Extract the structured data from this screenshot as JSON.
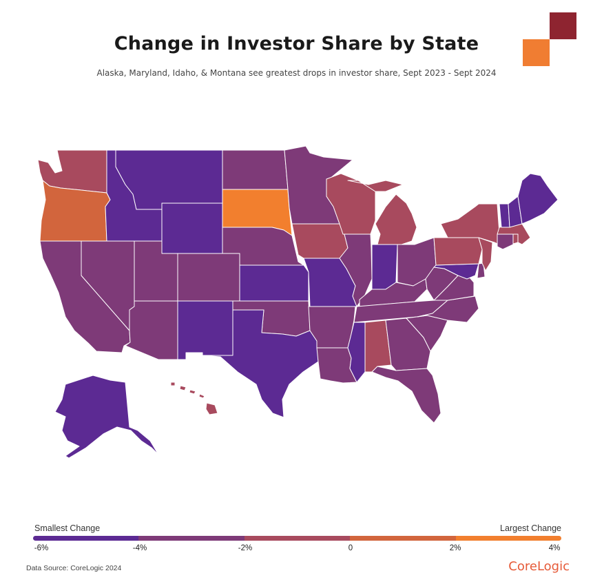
{
  "header": {
    "title": "Change in Investor Share by State",
    "subtitle": "Alaska, Maryland, Idaho, & Montana see greatest drops in investor share, Sept 2023 - Sept 2024"
  },
  "legend": {
    "left_label": "Smallest Change",
    "right_label": "Largest Change",
    "ticks": [
      "-6%",
      "-4%",
      "-2%",
      "0",
      "2%",
      "4%"
    ],
    "bins": [
      {
        "range": "-6% to -4%",
        "color": "#5c2a93"
      },
      {
        "range": "-4% to -2%",
        "color": "#7e3a78"
      },
      {
        "range": "-2% to 0",
        "color": "#a84a5e"
      },
      {
        "range": "0 to 2%",
        "color": "#d2653d"
      },
      {
        "range": "2% to 4%",
        "color": "#f27f2e"
      }
    ]
  },
  "footer": {
    "source": "Data Source: CoreLogic 2024",
    "brand": "CoreLogic"
  },
  "colors": {
    "bin1": "#5c2a93",
    "bin2": "#7e3a78",
    "bin3": "#a84a5e",
    "bin4": "#d2653d",
    "bin5": "#f27f2e",
    "deco_dark": "#8e2430",
    "deco_orange": "#f07d32"
  },
  "states": [
    {
      "name": "Washington",
      "bin": 3
    },
    {
      "name": "Oregon",
      "bin": 4
    },
    {
      "name": "California",
      "bin": 2
    },
    {
      "name": "Nevada",
      "bin": 2
    },
    {
      "name": "Idaho",
      "bin": 1
    },
    {
      "name": "Montana",
      "bin": 1
    },
    {
      "name": "Wyoming",
      "bin": 1
    },
    {
      "name": "Utah",
      "bin": 2
    },
    {
      "name": "Colorado",
      "bin": 2
    },
    {
      "name": "Arizona",
      "bin": 2
    },
    {
      "name": "New Mexico",
      "bin": 1
    },
    {
      "name": "North Dakota",
      "bin": 2
    },
    {
      "name": "South Dakota",
      "bin": 5
    },
    {
      "name": "Nebraska",
      "bin": 2
    },
    {
      "name": "Kansas",
      "bin": 1
    },
    {
      "name": "Oklahoma",
      "bin": 2
    },
    {
      "name": "Texas",
      "bin": 1
    },
    {
      "name": "Minnesota",
      "bin": 2
    },
    {
      "name": "Iowa",
      "bin": 3
    },
    {
      "name": "Missouri",
      "bin": 1
    },
    {
      "name": "Arkansas",
      "bin": 2
    },
    {
      "name": "Louisiana",
      "bin": 2
    },
    {
      "name": "Wisconsin",
      "bin": 3
    },
    {
      "name": "Illinois",
      "bin": 2
    },
    {
      "name": "Michigan",
      "bin": 3
    },
    {
      "name": "Indiana",
      "bin": 1
    },
    {
      "name": "Ohio",
      "bin": 2
    },
    {
      "name": "Kentucky",
      "bin": 2
    },
    {
      "name": "Tennessee",
      "bin": 2
    },
    {
      "name": "Mississippi",
      "bin": 1
    },
    {
      "name": "Alabama",
      "bin": 3
    },
    {
      "name": "Georgia",
      "bin": 2
    },
    {
      "name": "Florida",
      "bin": 2
    },
    {
      "name": "South Carolina",
      "bin": 2
    },
    {
      "name": "North Carolina",
      "bin": 2
    },
    {
      "name": "Virginia",
      "bin": 2
    },
    {
      "name": "West Virginia",
      "bin": 2
    },
    {
      "name": "Maryland",
      "bin": 1
    },
    {
      "name": "Delaware",
      "bin": 2
    },
    {
      "name": "Pennsylvania",
      "bin": 3
    },
    {
      "name": "New Jersey",
      "bin": 3
    },
    {
      "name": "New York",
      "bin": 3
    },
    {
      "name": "Connecticut",
      "bin": 2
    },
    {
      "name": "Rhode Island",
      "bin": 3
    },
    {
      "name": "Massachusetts",
      "bin": 3
    },
    {
      "name": "Vermont",
      "bin": 1
    },
    {
      "name": "New Hampshire",
      "bin": 1
    },
    {
      "name": "Maine",
      "bin": 1
    },
    {
      "name": "Alaska",
      "bin": 1
    },
    {
      "name": "Hawaii",
      "bin": 3
    }
  ]
}
